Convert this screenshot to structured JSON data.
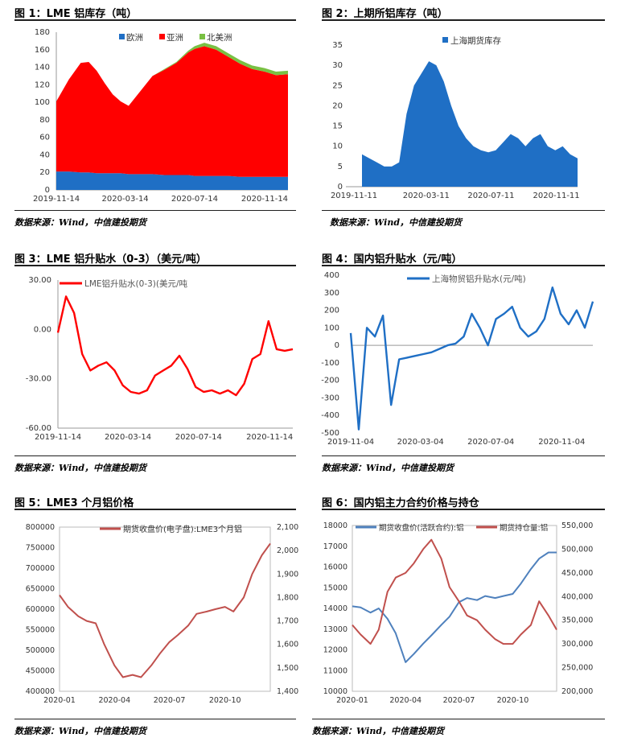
{
  "panels": [
    {
      "id": "p1",
      "title": "图 1：LME 铝库存（吨）",
      "source": "数据来源：Wind，中信建投期货",
      "chart_data": {
        "type": "area",
        "stacked": true,
        "x": [
          "2019-11-14",
          "2019-12-06",
          "2019-12-27",
          "2020-01-10",
          "2020-01-24",
          "2020-02-07",
          "2020-02-21",
          "2020-03-06",
          "2020-03-20",
          "2020-04-10",
          "2020-05-01",
          "2020-05-22",
          "2020-06-12",
          "2020-07-03",
          "2020-07-14",
          "2020-07-31",
          "2020-08-21",
          "2020-09-11",
          "2020-10-02",
          "2020-10-23",
          "2020-11-14",
          "2020-12-04",
          "2020-12-25"
        ],
        "series": [
          {
            "name": "欧洲",
            "color": "#1f6fc5",
            "values": [
              21,
              21,
              20,
              20,
              19,
              19,
              19,
              19,
              18,
              18,
              18,
              17,
              17,
              17,
              16,
              16,
              16,
              16,
              15,
              15,
              15,
              15,
              15
            ]
          },
          {
            "name": "亚洲",
            "color": "#ff0000",
            "values": [
              80,
              105,
              125,
              126,
              117,
              103,
              90,
              82,
              78,
              95,
              112,
              120,
              128,
              140,
              145,
              148,
              144,
              136,
              129,
              123,
              120,
              116,
              117
            ]
          },
          {
            "name": "北美洲",
            "color": "#79c043",
            "values": [
              0,
              0,
              0,
              0,
              0,
              0,
              0,
              0,
              0,
              0,
              0,
              1,
              1,
              2,
              3,
              4,
              4,
              4,
              4,
              4,
              4,
              4,
              4
            ]
          }
        ],
        "x_ticks": [
          "2019-11-14",
          "2020-03-14",
          "2020-07-14",
          "2020-11-14"
        ],
        "y_ticks": [
          0,
          20,
          40,
          60,
          80,
          100,
          120,
          140,
          160,
          180
        ],
        "ylim": [
          0,
          180
        ],
        "legend": "top"
      }
    },
    {
      "id": "p2",
      "title": "图 2：上期所铝库存（吨）",
      "source": "数据来源：Wind，中信建投期货",
      "chart_data": {
        "type": "area",
        "x": [
          "2019-11-11",
          "2019-11-25",
          "2019-12-09",
          "2019-12-23",
          "2020-01-06",
          "2020-01-20",
          "2020-02-03",
          "2020-02-17",
          "2020-03-02",
          "2020-03-16",
          "2020-03-30",
          "2020-04-13",
          "2020-04-27",
          "2020-05-11",
          "2020-05-25",
          "2020-06-08",
          "2020-06-22",
          "2020-07-06",
          "2020-07-20",
          "2020-08-03",
          "2020-08-17",
          "2020-08-31",
          "2020-09-14",
          "2020-09-28",
          "2020-10-12",
          "2020-10-26",
          "2020-11-09",
          "2020-11-23",
          "2020-12-07",
          "2020-12-21"
        ],
        "series": [
          {
            "name": "上海期货库存",
            "color": "#1f6fc5",
            "values": [
              8,
              7,
              6,
              5,
              5,
              6,
              18,
              25,
              28,
              31,
              30,
              26,
              20,
              15,
              12,
              10,
              9,
              8.5,
              9,
              11,
              13,
              12,
              10,
              12,
              13,
              10,
              9,
              10,
              8,
              7
            ]
          }
        ],
        "x_ticks": [
          "2019-11-11",
          "2020-03-11",
          "2020-07-11",
          "2020-11-11"
        ],
        "y_ticks": [
          0,
          5,
          10,
          15,
          20,
          25,
          30,
          35
        ],
        "ylim": [
          0,
          35
        ],
        "legend": "top"
      }
    },
    {
      "id": "p3",
      "title": "图 3：LME 铝升贴水（0-3）（美元/吨）",
      "source": "数据来源：Wind，中信建投期货",
      "chart_data": {
        "type": "line",
        "x": [
          "2019-11-14",
          "2019-11-28",
          "2019-12-12",
          "2019-12-26",
          "2020-01-09",
          "2020-01-23",
          "2020-02-06",
          "2020-02-20",
          "2020-03-05",
          "2020-03-19",
          "2020-04-02",
          "2020-04-16",
          "2020-04-30",
          "2020-05-14",
          "2020-05-28",
          "2020-06-11",
          "2020-06-25",
          "2020-07-09",
          "2020-07-23",
          "2020-08-06",
          "2020-08-20",
          "2020-09-03",
          "2020-09-17",
          "2020-10-01",
          "2020-10-15",
          "2020-10-29",
          "2020-11-12",
          "2020-11-26",
          "2020-12-10",
          "2020-12-24"
        ],
        "series": [
          {
            "name": "LME铝升贴水(0-3)(美元/吨",
            "color": "#ff0000",
            "values": [
              -2,
              20,
              10,
              -15,
              -25,
              -22,
              -20,
              -25,
              -34,
              -38,
              -39,
              -37,
              -28,
              -25,
              -22,
              -16,
              -24,
              -35,
              -38,
              -37,
              -39,
              -37,
              -40,
              -33,
              -18,
              -15,
              5,
              -12,
              -13,
              -12
            ]
          }
        ],
        "x_ticks": [
          "2019-11-14",
          "2020-03-14",
          "2020-07-14",
          "2020-11-14"
        ],
        "y_ticks": [
          -60,
          -30,
          0,
          30
        ],
        "y_tick_labels": [
          "-60.00",
          "-30.00",
          "0.00",
          "30.00"
        ],
        "ylim": [
          -60,
          30
        ],
        "legend": "top-left"
      }
    },
    {
      "id": "p4",
      "title": "图 4：国内铝升贴水（元/吨）",
      "source": "数据来源：Wind，中信建投期货",
      "chart_data": {
        "type": "line",
        "x": [
          "2019-11-04",
          "2019-11-18",
          "2019-12-02",
          "2019-12-16",
          "2019-12-30",
          "2020-01-13",
          "2020-01-27",
          "2020-02-10",
          "2020-02-24",
          "2020-03-09",
          "2020-03-23",
          "2020-04-06",
          "2020-04-20",
          "2020-05-04",
          "2020-05-18",
          "2020-06-01",
          "2020-06-15",
          "2020-06-29",
          "2020-07-13",
          "2020-07-27",
          "2020-08-10",
          "2020-08-24",
          "2020-09-07",
          "2020-09-21",
          "2020-10-05",
          "2020-10-19",
          "2020-11-02",
          "2020-11-16",
          "2020-11-30",
          "2020-12-14",
          "2020-12-28"
        ],
        "series": [
          {
            "name": "上海物贸铝升贴水(元/吨)",
            "color": "#1f6fc5",
            "values": [
              70,
              -480,
              100,
              50,
              170,
              -340,
              -80,
              -70,
              -60,
              -50,
              -40,
              -20,
              0,
              10,
              50,
              180,
              100,
              0,
              150,
              180,
              220,
              100,
              50,
              80,
              150,
              330,
              180,
              120,
              200,
              100,
              250
            ]
          }
        ],
        "x_ticks": [
          "2019-11-04",
          "2020-03-04",
          "2020-07-04",
          "2020-11-04"
        ],
        "y_ticks": [
          -500,
          -400,
          -300,
          -200,
          -100,
          0,
          100,
          200,
          300,
          400
        ],
        "ylim": [
          -500,
          400
        ],
        "legend": "top-right"
      }
    },
    {
      "id": "p5",
      "title": "图 5：LME3 个月铝价格",
      "source": "数据来源：Wind，中信建投期货",
      "chart_data": {
        "type": "line",
        "x": [
          "2020-01",
          "2020-01-15",
          "2020-02",
          "2020-02-15",
          "2020-03",
          "2020-03-15",
          "2020-04",
          "2020-04-15",
          "2020-05",
          "2020-05-15",
          "2020-06",
          "2020-06-15",
          "2020-07",
          "2020-07-15",
          "2020-08",
          "2020-08-15",
          "2020-09",
          "2020-09-15",
          "2020-10",
          "2020-10-15",
          "2020-11",
          "2020-11-15",
          "2020-12",
          "2020-12-15"
        ],
        "series": [
          {
            "name": "期货收盘价(电子盘):LME3个月铝",
            "color": "#c0504d",
            "values": [
              1810,
              1760,
              1720,
              1700,
              1690,
              1600,
              1510,
              1460,
              1470,
              1460,
              1510,
              1560,
              1610,
              1640,
              1680,
              1730,
              1740,
              1750,
              1760,
              1740,
              1800,
              1900,
              1980,
              2030
            ]
          }
        ],
        "x_ticks": [
          "2020-01",
          "2020-04",
          "2020-07",
          "2020-10"
        ],
        "y_ticks_left": [
          400000,
          450000,
          500000,
          550000,
          600000,
          650000,
          700000,
          750000,
          800000
        ],
        "y_ticks_right": [
          "1,400",
          "1,500",
          "1,600",
          "1,700",
          "1,800",
          "1,900",
          "2,000",
          "2,100"
        ],
        "ylim_left": [
          400000,
          800000
        ],
        "ylim_right": [
          1400,
          2100
        ],
        "legend": "top"
      }
    },
    {
      "id": "p6",
      "title": "图 6：国内铝主力合约价格与持仓",
      "source": "数据来源：Wind，中信建投期货",
      "chart_data": {
        "type": "line",
        "x": [
          "2020-01",
          "2020-01-15",
          "2020-02",
          "2020-02-15",
          "2020-03",
          "2020-03-15",
          "2020-04",
          "2020-04-15",
          "2020-05",
          "2020-05-15",
          "2020-06",
          "2020-06-15",
          "2020-07",
          "2020-07-15",
          "2020-08",
          "2020-08-15",
          "2020-09",
          "2020-09-15",
          "2020-10",
          "2020-10-15",
          "2020-11",
          "2020-11-15",
          "2020-12",
          "2020-12-15"
        ],
        "series": [
          {
            "name": "期货收盘价(活跃合约):铝",
            "axis": "left",
            "color": "#4f81bd",
            "values": [
              14100,
              14050,
              13800,
              14000,
              13500,
              12800,
              11400,
              11800,
              12300,
              12700,
              13200,
              13600,
              14300,
              14500,
              14400,
              14600,
              14500,
              14600,
              14700,
              15200,
              15900,
              16400,
              16700,
              16700
            ]
          },
          {
            "name": "期货持仓量:铝",
            "axis": "right",
            "color": "#c0504d",
            "values": [
              340000,
              320000,
              300000,
              330000,
              410000,
              440000,
              450000,
              470000,
              500000,
              520000,
              480000,
              420000,
              390000,
              360000,
              350000,
              330000,
              310000,
              300000,
              300000,
              320000,
              340000,
              390000,
              360000,
              330000
            ]
          }
        ],
        "x_ticks": [
          "2020-01",
          "2020-04",
          "2020-07",
          "2020-10"
        ],
        "y_ticks_left": [
          10000,
          11000,
          12000,
          13000,
          14000,
          15000,
          16000,
          17000,
          18000
        ],
        "y_ticks_right": [
          "200,000",
          "250,000",
          "300,000",
          "350,000",
          "400,000",
          "450,000",
          "500,000",
          "550,000"
        ],
        "ylim_left": [
          10000,
          18000
        ],
        "ylim_right": [
          200000,
          550000
        ],
        "legend": "top"
      }
    }
  ]
}
